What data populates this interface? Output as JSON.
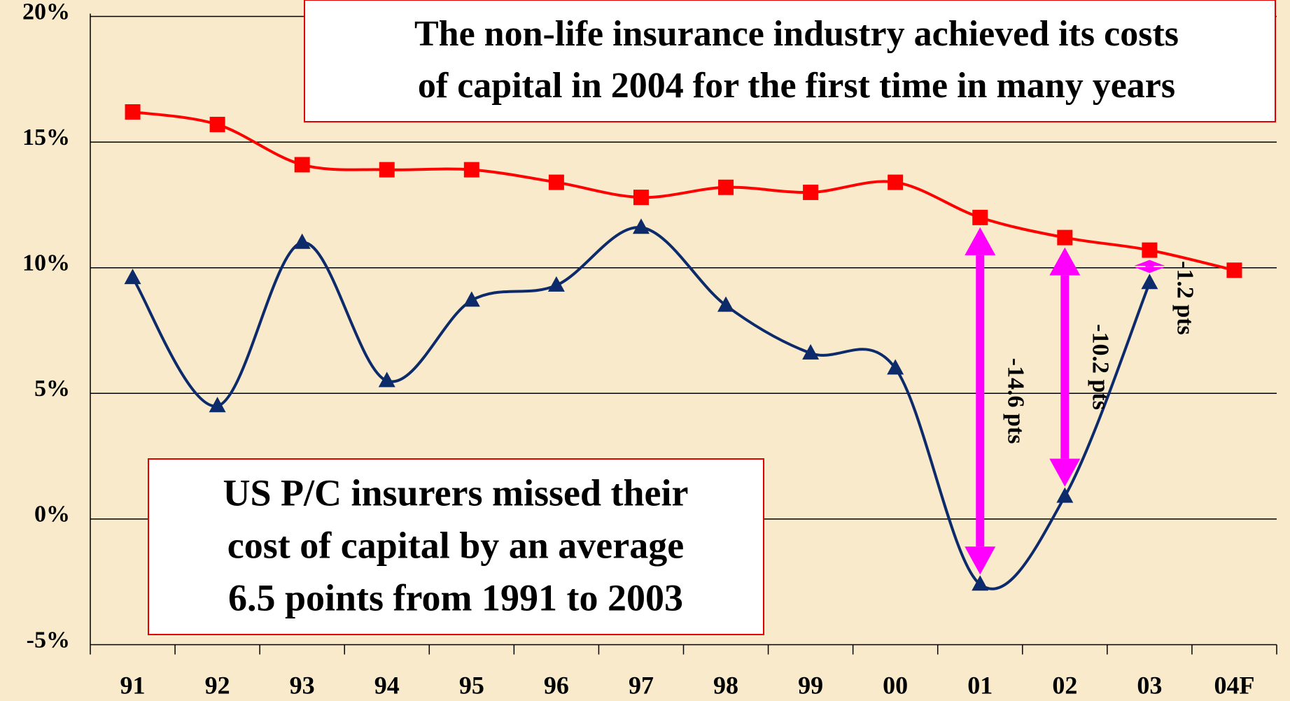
{
  "chart_data": {
    "type": "line",
    "categories": [
      "91",
      "92",
      "93",
      "94",
      "95",
      "96",
      "97",
      "98",
      "99",
      "00",
      "01",
      "02",
      "03",
      "04F"
    ],
    "series": [
      {
        "color": "#ff0000",
        "marker": "square",
        "values": [
          16.2,
          15.7,
          14.1,
          13.9,
          13.9,
          13.4,
          12.8,
          13.2,
          13.0,
          13.4,
          12.0,
          11.2,
          10.7,
          9.9
        ]
      },
      {
        "color": "#0d2a6b",
        "marker": "triangle",
        "values": [
          9.6,
          4.5,
          11.0,
          5.5,
          8.7,
          9.3,
          11.6,
          8.5,
          6.6,
          6.0,
          -2.6,
          0.9,
          9.4,
          null
        ]
      }
    ],
    "ylim": [
      -5,
      20
    ],
    "yticks": [
      {
        "value": 20,
        "label": "20%"
      },
      {
        "value": 15,
        "label": "15%"
      },
      {
        "value": 10,
        "label": "10%"
      },
      {
        "value": 5,
        "label": "5%"
      },
      {
        "value": 0,
        "label": "0%"
      },
      {
        "value": -5,
        "label": "-5%"
      }
    ],
    "grid": true,
    "arrow_color": "#ff00ff",
    "gap_labels": [
      "-14.6 pts",
      "-10.2 pts",
      "-1.2 pts"
    ],
    "annotations": [
      {
        "lines": [
          "The non-life insurance industry achieved its costs",
          "of capital in 2004 for the first time in many years"
        ]
      },
      {
        "lines": [
          "US P/C insurers missed their",
          "cost of capital by an average",
          "6.5 points from 1991 to 2003"
        ]
      }
    ]
  }
}
